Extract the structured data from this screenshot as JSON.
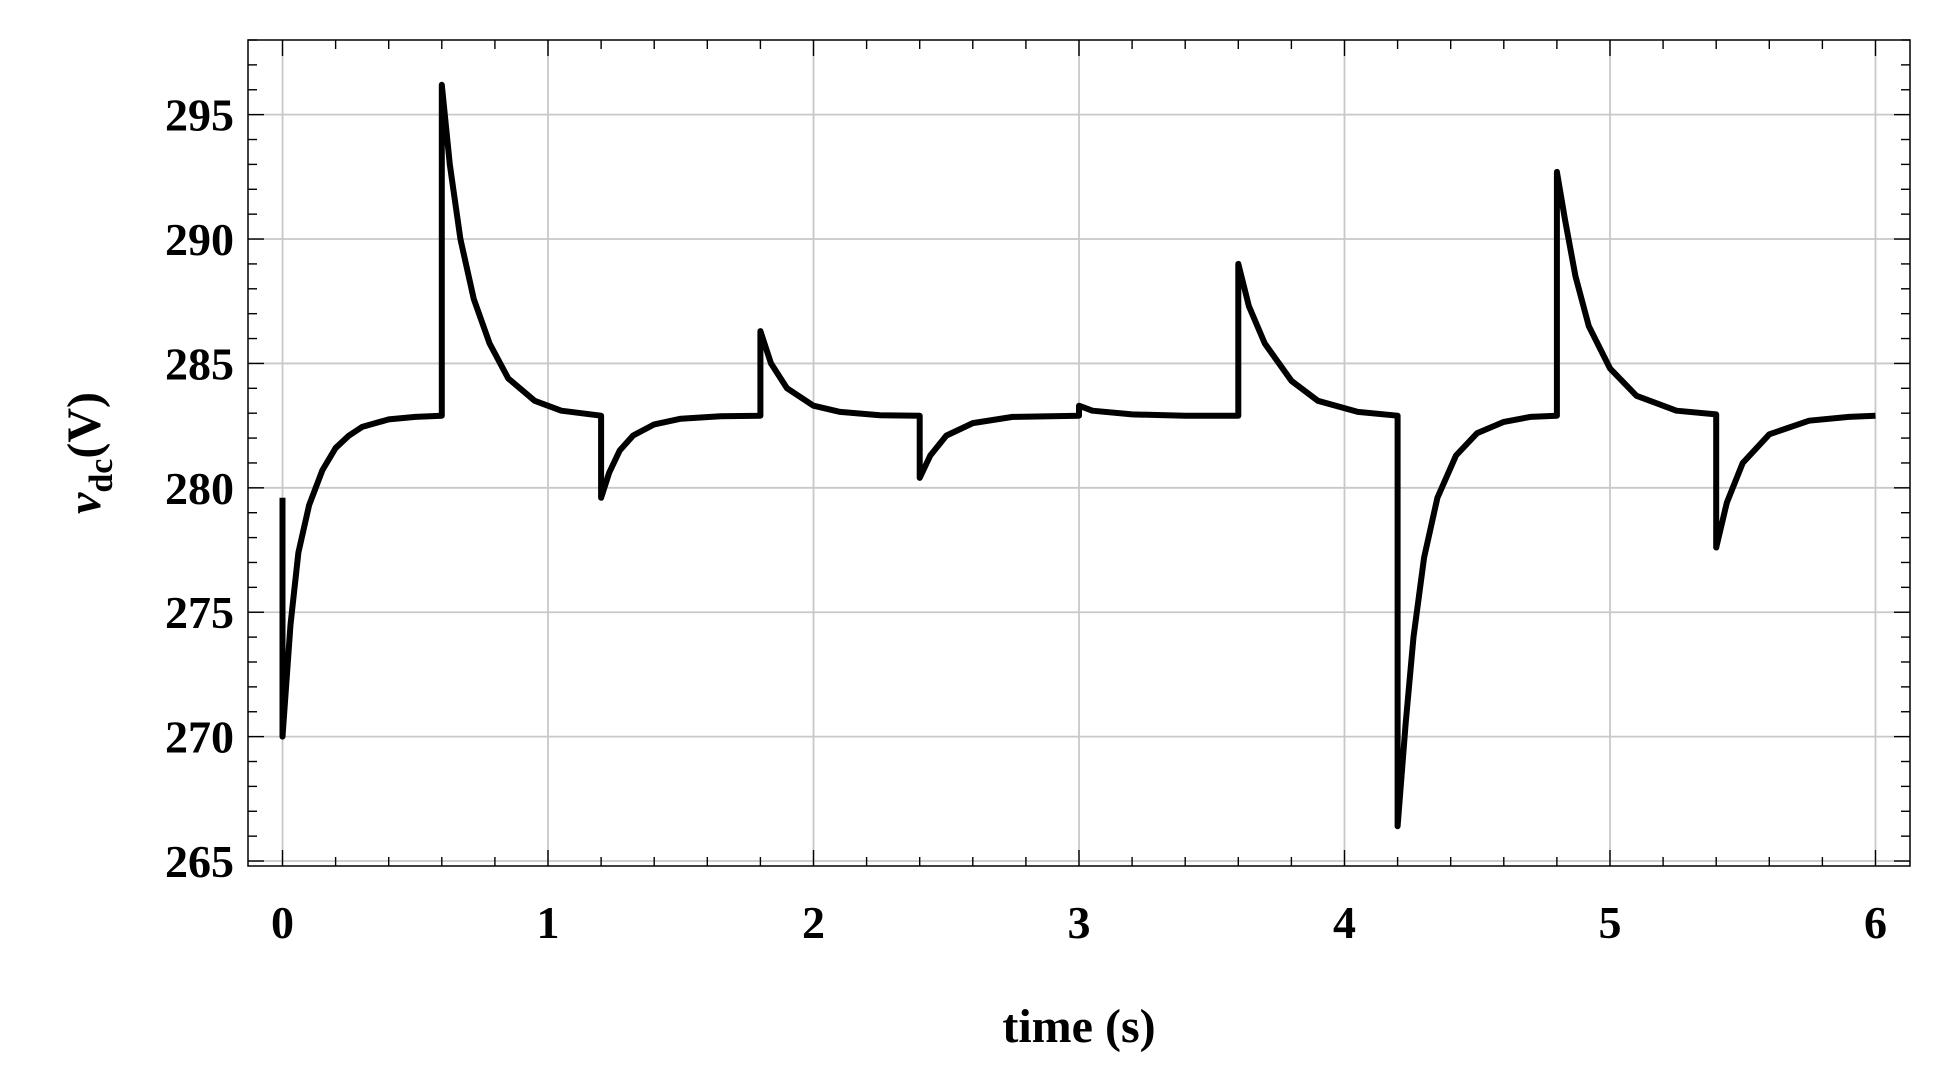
{
  "chart_data": {
    "type": "line",
    "title": "",
    "xlabel": "time (s)",
    "ylabel_main": "v",
    "ylabel_sub": "dc",
    "ylabel_unit": "(V)",
    "xlim": [
      -0.13,
      6.13
    ],
    "ylim": [
      264.8,
      298
    ],
    "xticks": [
      0,
      1,
      2,
      3,
      4,
      5,
      6
    ],
    "xtick_labels": [
      "0",
      "1",
      "2",
      "3",
      "4",
      "5",
      "6"
    ],
    "yticks": [
      265,
      270,
      275,
      280,
      285,
      290,
      295
    ],
    "ytick_labels": [
      "265",
      "270",
      "275",
      "280",
      "285",
      "290",
      "295"
    ],
    "grid": true,
    "legend": "none",
    "series": [
      {
        "color": "#000000",
        "steady_state": 282.9,
        "x": [
          0,
          0,
          0.03,
          0.06,
          0.1,
          0.15,
          0.2,
          0.25,
          0.3,
          0.4,
          0.5,
          0.6,
          0.6,
          0.63,
          0.67,
          0.72,
          0.78,
          0.85,
          0.95,
          1.05,
          1.2,
          1.2,
          1.23,
          1.27,
          1.32,
          1.4,
          1.5,
          1.65,
          1.8,
          1.8,
          1.84,
          1.9,
          2.0,
          2.1,
          2.25,
          2.4,
          2.4,
          2.44,
          2.5,
          2.6,
          2.75,
          3.0,
          3.0,
          3.05,
          3.2,
          3.4,
          3.6,
          3.6,
          3.64,
          3.7,
          3.8,
          3.9,
          4.05,
          4.2,
          4.2,
          4.23,
          4.26,
          4.3,
          4.35,
          4.42,
          4.5,
          4.6,
          4.7,
          4.8,
          4.8,
          4.83,
          4.87,
          4.92,
          5.0,
          5.1,
          5.25,
          5.4,
          5.4,
          5.44,
          5.5,
          5.6,
          5.75,
          5.9,
          6.0
        ],
        "y": [
          279.6,
          270.0,
          274.5,
          277.4,
          279.3,
          280.7,
          281.6,
          282.1,
          282.45,
          282.75,
          282.85,
          282.9,
          296.2,
          293.0,
          290.0,
          287.6,
          285.8,
          284.4,
          283.5,
          283.1,
          282.9,
          279.6,
          280.6,
          281.5,
          282.1,
          282.55,
          282.78,
          282.88,
          282.9,
          286.3,
          285.0,
          284.0,
          283.3,
          283.05,
          282.92,
          282.9,
          280.4,
          281.3,
          282.1,
          282.6,
          282.85,
          282.9,
          283.3,
          283.1,
          282.95,
          282.9,
          282.9,
          289.0,
          287.3,
          285.8,
          284.3,
          283.5,
          283.05,
          282.9,
          266.4,
          270.5,
          274.0,
          277.2,
          279.6,
          281.3,
          282.2,
          282.65,
          282.85,
          282.9,
          292.7,
          290.8,
          288.5,
          286.5,
          284.8,
          283.7,
          283.1,
          282.95,
          277.6,
          279.4,
          281.0,
          282.15,
          282.7,
          282.85,
          282.9
        ]
      }
    ]
  }
}
